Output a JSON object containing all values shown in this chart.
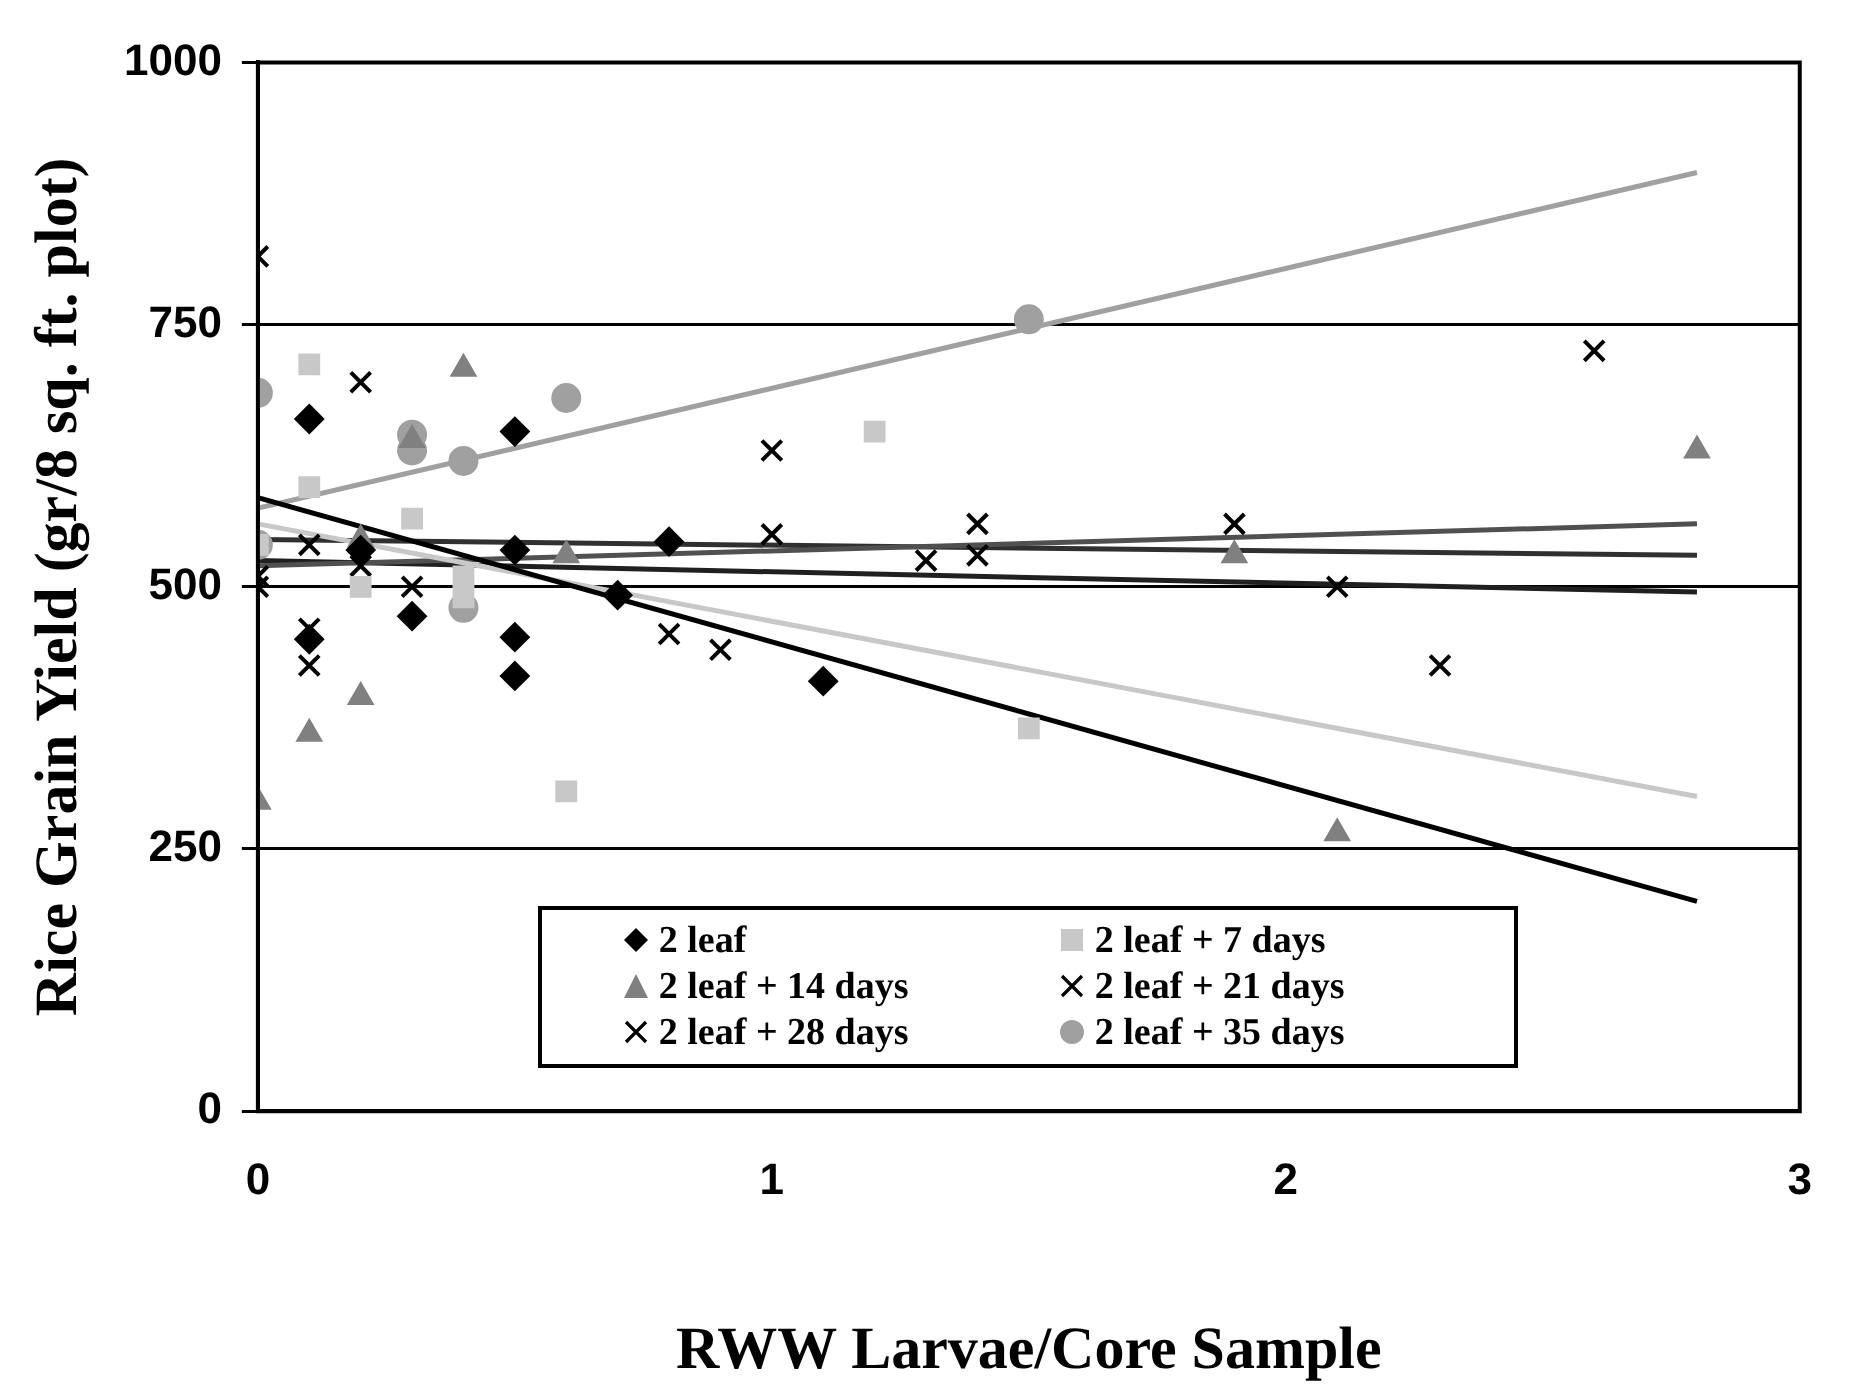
{
  "chart_data": {
    "type": "scatter",
    "xlabel": "RWW Larvae/Core Sample",
    "ylabel": "Rice Grain Yield (gr/8 sq. ft. plot)",
    "xlim": [
      0,
      3
    ],
    "xticks": [
      0,
      1,
      2,
      3
    ],
    "ylim": [
      0,
      1000
    ],
    "yticks": [
      0,
      250,
      500,
      750,
      1000
    ],
    "grid": "y",
    "legend": "bottom",
    "series": [
      {
        "name": "2 leaf",
        "type": "scatter",
        "marker": "diamond",
        "color": "#000000",
        "x": [
          0.1,
          0.1,
          0.2,
          0.3,
          0.5,
          0.5,
          0.5,
          0.5,
          0.7,
          0.8,
          1.1
        ],
        "values": [
          660,
          450,
          535,
          472,
          648,
          535,
          452,
          415,
          492,
          543,
          410
        ]
      },
      {
        "name": "2 leaf + 7 days",
        "type": "scatter",
        "marker": "square",
        "color": "#c8c8c8",
        "x": [
          0,
          0.1,
          0.1,
          0.2,
          0.3,
          0.4,
          0.4,
          0.6,
          1.2,
          1.5
        ],
        "values": [
          540,
          712,
          595,
          500,
          565,
          510,
          490,
          305,
          648,
          365
        ]
      },
      {
        "name": "2 leaf + 14 days",
        "type": "scatter",
        "marker": "triangle",
        "color": "#808080",
        "x": [
          0,
          0.1,
          0.2,
          0.2,
          0.3,
          0.4,
          0.6,
          1.9,
          2.1,
          2.8
        ],
        "values": [
          295,
          360,
          395,
          545,
          640,
          708,
          530,
          530,
          265,
          630
        ]
      },
      {
        "name": "2 leaf + 21 days",
        "type": "scatter",
        "marker": "cross",
        "color": "#000000",
        "x": [
          0,
          0.1,
          0.1,
          0.3,
          1.0,
          1.3,
          1.4,
          1.4,
          1.9
        ],
        "values": [
          510,
          425,
          540,
          500,
          550,
          525,
          560,
          530,
          560
        ]
      },
      {
        "name": "2 leaf + 28 days",
        "type": "scatter",
        "marker": "cross",
        "color": "#000000",
        "x": [
          0,
          0,
          0.1,
          0.2,
          0.2,
          0.8,
          0.9,
          1.0,
          2.1,
          2.3,
          2.6
        ],
        "values": [
          815,
          500,
          460,
          695,
          520,
          455,
          440,
          630,
          500,
          425,
          725
        ]
      },
      {
        "name": "2 leaf + 35 days",
        "type": "scatter",
        "marker": "circle",
        "color": "#a0a0a0",
        "x": [
          0,
          0,
          0.3,
          0.3,
          0.4,
          0.4,
          0.6,
          1.5
        ],
        "values": [
          685,
          540,
          645,
          630,
          480,
          620,
          680,
          755
        ]
      },
      {
        "type": "line",
        "marker": "none",
        "line_style": "solid",
        "color": "#000000",
        "x": [
          0,
          2.8
        ],
        "values": [
          585,
          200
        ]
      },
      {
        "type": "line",
        "marker": "none",
        "line_style": "solid",
        "color": "#c8c8c8",
        "x": [
          0,
          2.8
        ],
        "values": [
          560,
          300
        ]
      },
      {
        "type": "line",
        "marker": "none",
        "line_style": "solid",
        "color": "#505050",
        "x": [
          0,
          2.8
        ],
        "values": [
          520,
          560
        ]
      },
      {
        "type": "line",
        "marker": "none",
        "line_style": "solid",
        "color": "#303030",
        "x": [
          0,
          2.8
        ],
        "values": [
          545,
          530
        ]
      },
      {
        "type": "line",
        "marker": "none",
        "line_style": "solid",
        "color": "#202020",
        "x": [
          0,
          2.8
        ],
        "values": [
          525,
          495
        ]
      },
      {
        "type": "line",
        "marker": "none",
        "line_style": "solid",
        "color": "#a0a0a0",
        "x": [
          0,
          2.8
        ],
        "values": [
          575,
          895
        ]
      }
    ]
  }
}
